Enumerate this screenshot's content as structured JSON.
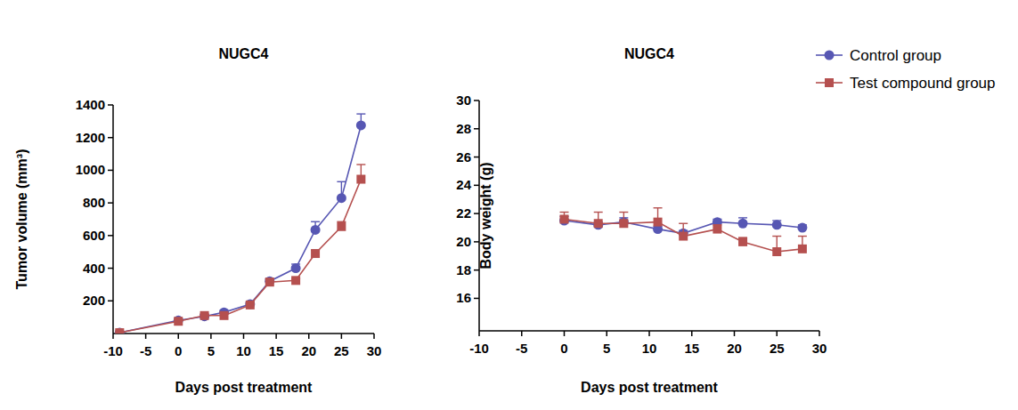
{
  "chart_data": [
    {
      "type": "line",
      "title": "NUGC4",
      "x_label": "Days post treatment",
      "y_label": "Tumor volume (mm³)",
      "x": [
        -9,
        0,
        4,
        7,
        11,
        14,
        18,
        21,
        25,
        28
      ],
      "xlim": [
        -10,
        30
      ],
      "xticks": [
        -10,
        -5,
        0,
        5,
        10,
        15,
        20,
        25,
        30
      ],
      "ylim": [
        0,
        1400
      ],
      "yticks": [
        200,
        400,
        600,
        800,
        1000,
        1200,
        1400
      ],
      "grid": false,
      "legend": "none",
      "series": [
        {
          "name": "Control group",
          "color": "#5757b3",
          "marker": "circle",
          "line_style": "solid",
          "values": [
            5,
            80,
            105,
            130,
            180,
            320,
            400,
            635,
            830,
            1275
          ],
          "errors": [
            3,
            10,
            10,
            12,
            12,
            15,
            25,
            50,
            100,
            70
          ]
        },
        {
          "name": "Test compound group",
          "color": "#b5504f",
          "marker": "square",
          "line_style": "solid",
          "values": [
            5,
            75,
            110,
            110,
            175,
            315,
            325,
            490,
            655,
            945
          ],
          "errors": [
            3,
            12,
            10,
            12,
            12,
            20,
            10,
            20,
            30,
            90
          ]
        }
      ]
    },
    {
      "type": "line",
      "title": "NUGC4",
      "x_label": "Days post treatment",
      "y_label": "Body weight (g)",
      "x": [
        0,
        4,
        7,
        11,
        14,
        18,
        21,
        25,
        28
      ],
      "xlim": [
        -10,
        30
      ],
      "xticks": [
        -10,
        -5,
        0,
        5,
        10,
        15,
        20,
        25,
        30
      ],
      "ylim": [
        13.7,
        30
      ],
      "yticks": [
        16,
        18,
        20,
        22,
        24,
        26,
        28,
        30
      ],
      "grid": false,
      "legend": "top-right",
      "series": [
        {
          "name": "Control group",
          "color": "#5757b3",
          "marker": "circle",
          "line_style": "solid",
          "values": [
            21.5,
            21.2,
            21.4,
            20.9,
            20.6,
            21.4,
            21.3,
            21.2,
            21.0
          ],
          "errors": [
            0.3,
            0.2,
            0.3,
            0.2,
            0.2,
            0.2,
            0.4,
            0.3,
            0.2
          ]
        },
        {
          "name": "Test compound group",
          "color": "#b5504f",
          "marker": "square",
          "line_style": "solid",
          "values": [
            21.6,
            21.3,
            21.3,
            21.4,
            20.4,
            20.9,
            20.0,
            19.3,
            19.5
          ],
          "errors": [
            0.5,
            0.8,
            0.8,
            1.0,
            0.9,
            0.3,
            0.3,
            1.1,
            0.9
          ]
        }
      ]
    }
  ]
}
